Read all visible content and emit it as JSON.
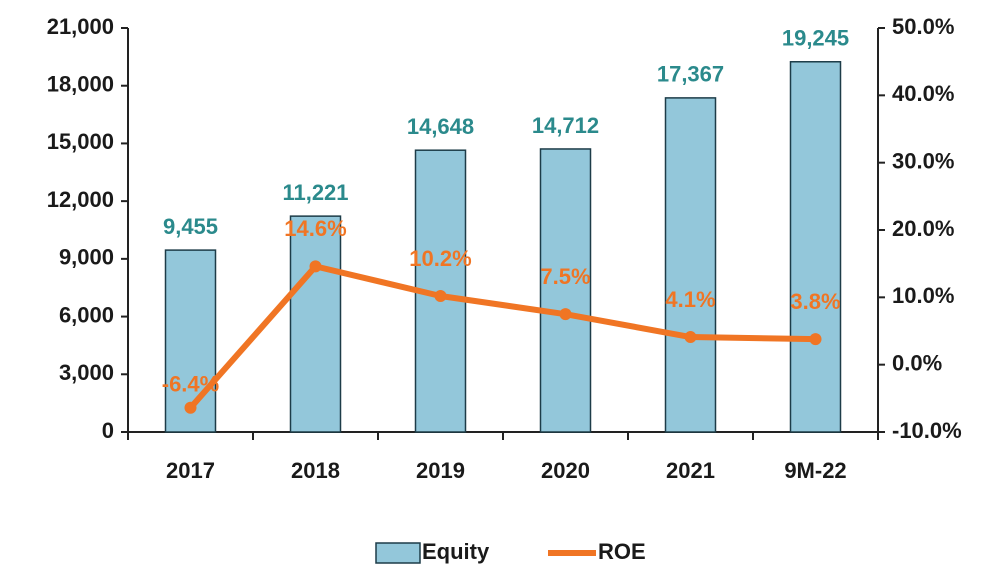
{
  "chart_data": {
    "type": "bar",
    "categories": [
      "2017",
      "2018",
      "2019",
      "2020",
      "2021",
      "9M-22"
    ],
    "series": [
      {
        "name": "Equity",
        "type": "bar",
        "color": "#93c7da",
        "values": [
          9455,
          11221,
          14648,
          14712,
          17367,
          19245
        ],
        "value_labels": [
          "9,455",
          "11,221",
          "14,648",
          "14,712",
          "17,367",
          "19,245"
        ],
        "label_color": "#2b8a8c"
      },
      {
        "name": "ROE",
        "type": "line",
        "axis": "y2",
        "color": "#f07524",
        "values": [
          -6.4,
          14.6,
          10.2,
          7.5,
          4.1,
          3.8
        ],
        "value_labels": [
          "-6.4%",
          "14.6%",
          "10.2%",
          "7.5%",
          "4.1%",
          "3.8%"
        ],
        "label_color": "#f07524"
      }
    ],
    "ylim": [
      0,
      21000
    ],
    "yticks": [
      0,
      {
        "value": 3000,
        "label": "3,000"
      },
      {
        "value": 6000,
        "label": "6,000"
      },
      {
        "value": 9000,
        "label": "9,000"
      },
      {
        "value": 12000,
        "label": "12,000"
      },
      {
        "value": 15000,
        "label": "15,000"
      },
      {
        "value": 18000,
        "label": "18,000"
      },
      {
        "value": 21000,
        "label": "21,000"
      }
    ],
    "y2lim": [
      -10,
      50
    ],
    "y2ticks": [
      {
        "value": -10,
        "label": "-10.0%"
      },
      {
        "value": 0,
        "label": "0.0%"
      },
      {
        "value": 10,
        "label": "10.0%"
      },
      {
        "value": 20,
        "label": "20.0%"
      },
      {
        "value": 30,
        "label": "30.0%"
      },
      {
        "value": 40,
        "label": "40.0%"
      },
      {
        "value": 50,
        "label": "50.0%"
      }
    ],
    "legend": "bottom"
  }
}
